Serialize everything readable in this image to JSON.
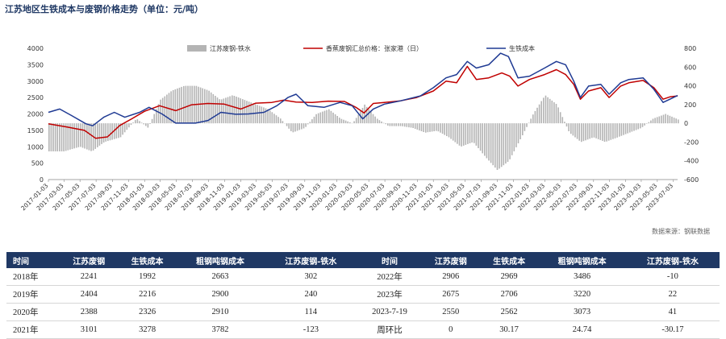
{
  "title": "江苏地区生铁成本与废钢价格走势（单位：元/吨）",
  "source": "数据来源：钢联数据",
  "colors": {
    "scrap": "#c00000",
    "pigiron": "#1f3a93",
    "spread": "#b4b4b4",
    "header_bg": "#1f3864",
    "positive": "#c00000",
    "negative": "#2e7d32"
  },
  "chart_data": {
    "type": "line",
    "legend_position": "top",
    "grid": false,
    "legend": [
      "江苏废钢-铁水",
      "香蕉废钢汇总价格：张家港（日）",
      "生铁成本"
    ],
    "y_left": {
      "range": [
        0,
        4000
      ],
      "ticks": [
        "4000",
        "3500",
        "3000",
        "2500",
        "2000",
        "1500",
        "1000",
        "500",
        "0"
      ]
    },
    "y_right": {
      "range": [
        -600,
        800
      ],
      "ticks": [
        "800",
        "600",
        "400",
        "200",
        "0",
        "-200",
        "-400",
        "-600"
      ]
    },
    "x_range": [
      "2017-01-03",
      "2023-07-19"
    ],
    "x_ticks": [
      "2017-01-03",
      "2017-03-03",
      "2017-05-03",
      "2017-07-03",
      "2017-09-03",
      "2017-11-03",
      "2018-01-03",
      "2018-03-03",
      "2018-05-03",
      "2018-07-03",
      "2018-09-03",
      "2018-11-03",
      "2019-01-03",
      "2019-03-03",
      "2019-05-03",
      "2019-07-03",
      "2019-09-03",
      "2019-11-03",
      "2020-01-03",
      "2020-03-03",
      "2020-05-03",
      "2020-07-03",
      "2020-09-03",
      "2020-11-03",
      "2021-01-03",
      "2021-03-03",
      "2021-05-03",
      "2021-07-03",
      "2021-09-03",
      "2021-11-03",
      "2022-01-03",
      "2022-03-03",
      "2022-05-03",
      "2022-07-03",
      "2022-09-03",
      "2022-11-03",
      "2023-01-03",
      "2023-03-03",
      "2023-05-03",
      "2023-07-03"
    ],
    "series": [
      {
        "name": "香蕉废钢汇总价格：张家港（日）",
        "axis": "left",
        "style": "line",
        "points": [
          [
            "2017-01-03",
            1700
          ],
          [
            "2017-03-15",
            1600
          ],
          [
            "2017-05-20",
            1500
          ],
          [
            "2017-07-01",
            1260
          ],
          [
            "2017-08-15",
            1300
          ],
          [
            "2017-10-01",
            1650
          ],
          [
            "2017-11-15",
            1850
          ],
          [
            "2018-01-03",
            2080
          ],
          [
            "2018-03-01",
            2250
          ],
          [
            "2018-05-01",
            2100
          ],
          [
            "2018-07-01",
            2280
          ],
          [
            "2018-09-01",
            2320
          ],
          [
            "2018-11-01",
            2300
          ],
          [
            "2019-01-03",
            2150
          ],
          [
            "2019-03-01",
            2330
          ],
          [
            "2019-05-01",
            2350
          ],
          [
            "2019-06-15",
            2420
          ],
          [
            "2019-08-01",
            2360
          ],
          [
            "2019-10-01",
            2350
          ],
          [
            "2019-12-01",
            2390
          ],
          [
            "2020-02-01",
            2380
          ],
          [
            "2020-03-15",
            2200
          ],
          [
            "2020-04-15",
            2030
          ],
          [
            "2020-05-20",
            2320
          ],
          [
            "2020-07-01",
            2350
          ],
          [
            "2020-09-01",
            2400
          ],
          [
            "2020-11-01",
            2500
          ],
          [
            "2021-01-03",
            2700
          ],
          [
            "2021-02-20",
            3000
          ],
          [
            "2021-04-01",
            2950
          ],
          [
            "2021-05-12",
            3450
          ],
          [
            "2021-06-15",
            3050
          ],
          [
            "2021-08-01",
            3100
          ],
          [
            "2021-09-20",
            3250
          ],
          [
            "2021-10-20",
            3150
          ],
          [
            "2021-11-20",
            2850
          ],
          [
            "2022-01-03",
            3050
          ],
          [
            "2022-03-01",
            3200
          ],
          [
            "2022-04-15",
            3350
          ],
          [
            "2022-05-20",
            3200
          ],
          [
            "2022-06-20",
            2900
          ],
          [
            "2022-07-15",
            2450
          ],
          [
            "2022-08-15",
            2700
          ],
          [
            "2022-10-01",
            2800
          ],
          [
            "2022-11-01",
            2500
          ],
          [
            "2022-12-15",
            2850
          ],
          [
            "2023-01-15",
            2950
          ],
          [
            "2023-03-10",
            3020
          ],
          [
            "2023-04-20",
            2800
          ],
          [
            "2023-05-25",
            2450
          ],
          [
            "2023-06-20",
            2520
          ],
          [
            "2023-07-19",
            2550
          ]
        ]
      },
      {
        "name": "生铁成本",
        "axis": "left",
        "style": "line",
        "points": [
          [
            "2017-01-03",
            2050
          ],
          [
            "2017-02-15",
            2150
          ],
          [
            "2017-04-01",
            1950
          ],
          [
            "2017-05-25",
            1700
          ],
          [
            "2017-06-20",
            1640
          ],
          [
            "2017-08-01",
            1900
          ],
          [
            "2017-09-10",
            2050
          ],
          [
            "2017-10-20",
            1900
          ],
          [
            "2017-12-15",
            2050
          ],
          [
            "2018-01-20",
            2200
          ],
          [
            "2018-03-10",
            2000
          ],
          [
            "2018-05-01",
            1720
          ],
          [
            "2018-07-15",
            1720
          ],
          [
            "2018-09-01",
            1800
          ],
          [
            "2018-10-20",
            2050
          ],
          [
            "2018-12-15",
            1990
          ],
          [
            "2019-02-01",
            2000
          ],
          [
            "2019-04-01",
            2050
          ],
          [
            "2019-05-20",
            2250
          ],
          [
            "2019-07-01",
            2500
          ],
          [
            "2019-08-01",
            2600
          ],
          [
            "2019-09-15",
            2250
          ],
          [
            "2019-11-15",
            2200
          ],
          [
            "2020-01-15",
            2350
          ],
          [
            "2020-03-01",
            2250
          ],
          [
            "2020-04-10",
            1850
          ],
          [
            "2020-05-20",
            2150
          ],
          [
            "2020-07-01",
            2300
          ],
          [
            "2020-09-01",
            2400
          ],
          [
            "2020-11-15",
            2550
          ],
          [
            "2021-01-03",
            2800
          ],
          [
            "2021-02-20",
            3100
          ],
          [
            "2021-04-01",
            3200
          ],
          [
            "2021-05-12",
            3600
          ],
          [
            "2021-06-15",
            3400
          ],
          [
            "2021-08-01",
            3500
          ],
          [
            "2021-09-15",
            3850
          ],
          [
            "2021-10-15",
            3750
          ],
          [
            "2021-11-20",
            3100
          ],
          [
            "2022-01-03",
            3150
          ],
          [
            "2022-03-01",
            3400
          ],
          [
            "2022-04-15",
            3600
          ],
          [
            "2022-05-20",
            3500
          ],
          [
            "2022-06-20",
            3000
          ],
          [
            "2022-07-15",
            2500
          ],
          [
            "2022-08-15",
            2850
          ],
          [
            "2022-10-01",
            2900
          ],
          [
            "2022-11-01",
            2600
          ],
          [
            "2022-12-15",
            2950
          ],
          [
            "2023-01-15",
            3050
          ],
          [
            "2023-03-10",
            3100
          ],
          [
            "2023-04-20",
            2750
          ],
          [
            "2023-05-25",
            2350
          ],
          [
            "2023-06-20",
            2450
          ],
          [
            "2023-07-19",
            2562
          ]
        ]
      }
    ],
    "spread_bars": {
      "name": "江苏废钢-铁水",
      "axis": "right",
      "points": [
        [
          "2017-01-03",
          -300
        ],
        [
          "2017-03-01",
          -300
        ],
        [
          "2017-05-01",
          -250
        ],
        [
          "2017-06-15",
          -300
        ],
        [
          "2017-08-01",
          -200
        ],
        [
          "2017-10-01",
          -150
        ],
        [
          "2017-12-01",
          50
        ],
        [
          "2018-01-15",
          -50
        ],
        [
          "2018-03-01",
          250
        ],
        [
          "2018-04-15",
          350
        ],
        [
          "2018-06-01",
          400
        ],
        [
          "2018-07-15",
          400
        ],
        [
          "2018-09-01",
          350
        ],
        [
          "2018-10-15",
          250
        ],
        [
          "2018-12-01",
          300
        ],
        [
          "2019-01-15",
          250
        ],
        [
          "2019-03-01",
          200
        ],
        [
          "2019-04-15",
          150
        ],
        [
          "2019-06-01",
          50
        ],
        [
          "2019-07-15",
          -100
        ],
        [
          "2019-09-01",
          -50
        ],
        [
          "2019-10-15",
          100
        ],
        [
          "2019-12-01",
          150
        ],
        [
          "2020-01-15",
          50
        ],
        [
          "2020-03-01",
          0
        ],
        [
          "2020-04-15",
          200
        ],
        [
          "2020-06-01",
          50
        ],
        [
          "2020-07-15",
          -30
        ],
        [
          "2020-09-01",
          -30
        ],
        [
          "2020-10-15",
          -50
        ],
        [
          "2020-12-01",
          -100
        ],
        [
          "2021-01-15",
          -80
        ],
        [
          "2021-03-01",
          -150
        ],
        [
          "2021-04-15",
          -250
        ],
        [
          "2021-06-01",
          -200
        ],
        [
          "2021-07-15",
          -350
        ],
        [
          "2021-09-01",
          -500
        ],
        [
          "2021-10-15",
          -400
        ],
        [
          "2021-12-01",
          -150
        ],
        [
          "2022-01-15",
          100
        ],
        [
          "2022-03-01",
          300
        ],
        [
          "2022-04-15",
          200
        ],
        [
          "2022-06-01",
          -100
        ],
        [
          "2022-07-15",
          -200
        ],
        [
          "2022-09-01",
          -150
        ],
        [
          "2022-10-15",
          -200
        ],
        [
          "2022-12-01",
          -150
        ],
        [
          "2023-01-15",
          -100
        ],
        [
          "2023-03-01",
          -50
        ],
        [
          "2023-04-15",
          50
        ],
        [
          "2023-06-01",
          100
        ],
        [
          "2023-07-19",
          41
        ]
      ]
    }
  },
  "table": {
    "headers": [
      "时间",
      "江苏废钢",
      "生铁成本",
      "粗钢吨钢成本",
      "江苏废钢-铁水",
      "时间",
      "江苏废钢",
      "生铁成本",
      "粗钢吨钢成本",
      "江苏废钢-铁水"
    ],
    "rows": [
      {
        "cells": [
          "2018年",
          "2241",
          "1992",
          "2663",
          "302",
          "2022年",
          "2906",
          "2969",
          "3486",
          "-10"
        ],
        "tone4": "red",
        "tone9": "green"
      },
      {
        "cells": [
          "2019年",
          "2404",
          "2216",
          "2900",
          "240",
          "2023年",
          "2675",
          "2706",
          "3220",
          "22"
        ],
        "tone4": "red",
        "tone9": "red"
      },
      {
        "cells": [
          "2020年",
          "2388",
          "2326",
          "2910",
          "114",
          "2023-7-19",
          "2550",
          "2562",
          "3073",
          "41"
        ],
        "tone4": "red",
        "tone9": "red"
      },
      {
        "cells": [
          "2021年",
          "3101",
          "3278",
          "3782",
          "-123",
          "周环比",
          "0",
          "30.17",
          "24.74",
          "-30.17"
        ],
        "tone4": "green",
        "tone9": "green"
      }
    ]
  }
}
